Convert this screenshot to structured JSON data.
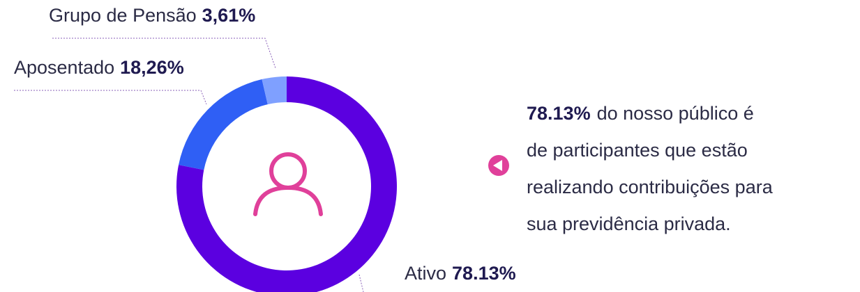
{
  "chart_data": {
    "type": "donut",
    "categories": [
      "Ativo",
      "Aposentado",
      "Grupo de Pensão"
    ],
    "values": [
      78.13,
      18.26,
      3.61
    ],
    "value_labels": [
      "78.13%",
      "18,26%",
      "3,61%"
    ],
    "colors": [
      "#5b00e0",
      "#2f5ff5",
      "#7fa0ff"
    ]
  },
  "description": {
    "highlight": "78.13%",
    "lines": [
      "do nosso público é",
      "de participantes que estão",
      "realizando contribuições para",
      "sua previdência privada."
    ]
  }
}
